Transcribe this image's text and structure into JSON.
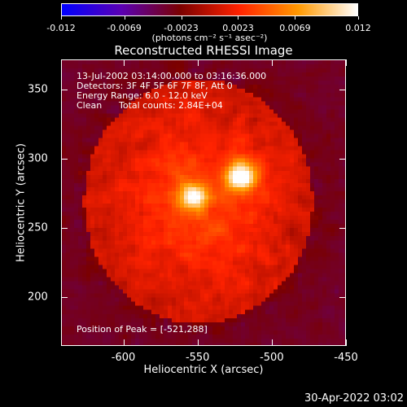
{
  "chart_data": {
    "type": "heatmap",
    "title": "Reconstructed RHESSI Image",
    "xlabel": "Heliocentric X (arcsec)",
    "ylabel": "Heliocentric Y (arcsec)",
    "xlim": [
      -642,
      -450
    ],
    "ylim": [
      165,
      372
    ],
    "xticks": [
      "-600",
      "-550",
      "-500",
      "-450"
    ],
    "xtick_values": [
      -600,
      -550,
      -500,
      -450
    ],
    "yticks": [
      "200",
      "250",
      "300",
      "350"
    ],
    "ytick_values": [
      200,
      250,
      300,
      350
    ],
    "colorbar": {
      "ticks": [
        "-0.012",
        "-0.0069",
        "-0.0023",
        "0.0023",
        "0.0069",
        "0.012"
      ],
      "tick_values": [
        -0.012,
        -0.0069,
        -0.0023,
        0.0023,
        0.0069,
        0.012
      ],
      "range": [
        -0.012,
        0.012
      ],
      "units": "(photons cm⁻² s⁻¹ asec⁻²)",
      "colors": [
        "#0000ff",
        "#5a00b4",
        "#7a0000",
        "#ff2200",
        "#ff9900",
        "#ffffff"
      ]
    },
    "annotations": {
      "time_range": "13-Jul-2002 03:14:00.000 to 03:16:36.000",
      "detectors": "Detectors: 3F 4F 5F 6F 7F 8F, Att 0",
      "energy": "Energy Range: 6.0 - 12.0 keV",
      "algorithm": "Clean",
      "counts": "Total counts: 2.84E+04",
      "peak": "Position of Peak = [-521,288]"
    },
    "sources": [
      {
        "x": -521,
        "y": 288,
        "peak": 0.012
      },
      {
        "x": -553,
        "y": 274,
        "peak": 0.0095
      }
    ]
  },
  "footer": {
    "timestamp": "30-Apr-2022 03:02"
  }
}
